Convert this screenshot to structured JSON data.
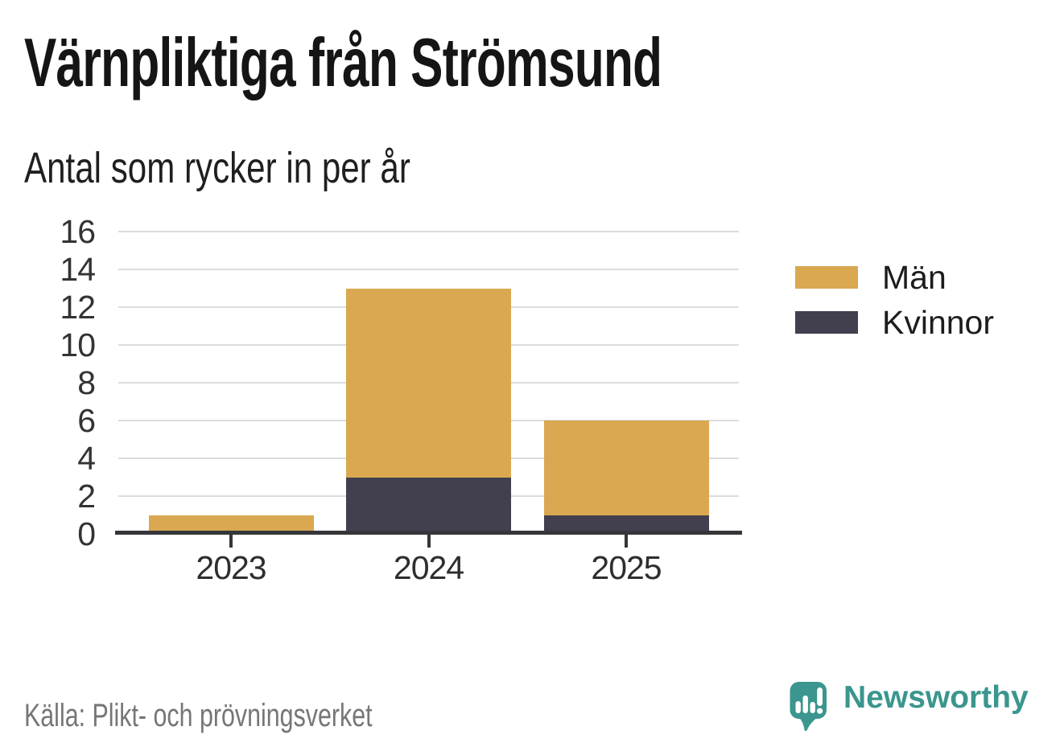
{
  "source_note": "Källa: Plikt- och prövningsverket",
  "branding": {
    "wordmark": "Newsworthy",
    "icon": "newsworthy-bubble-chart-icon",
    "color": "#3a968e"
  },
  "chart_data": {
    "type": "bar",
    "stacked": true,
    "title": "Värnpliktiga från Strömsund",
    "subtitle": "Antal som rycker in per år",
    "categories": [
      "2023",
      "2024",
      "2025"
    ],
    "series": [
      {
        "name": "Män",
        "color": "#d9a851",
        "values": [
          1,
          10,
          5
        ]
      },
      {
        "name": "Kvinnor",
        "color": "#423f4e",
        "values": [
          0,
          3,
          1
        ]
      }
    ],
    "stack_order_bottom_to_top": [
      "Kvinnor",
      "Män"
    ],
    "totals": [
      1,
      13,
      6
    ],
    "ylim": [
      0,
      16
    ],
    "yticks": [
      0,
      2,
      4,
      6,
      8,
      10,
      12,
      14,
      16
    ],
    "grid": true,
    "legend_position": "right",
    "axis_color": "#35363a",
    "gridline_color": "#dcdcdc",
    "tick_label_color": "#333333"
  }
}
